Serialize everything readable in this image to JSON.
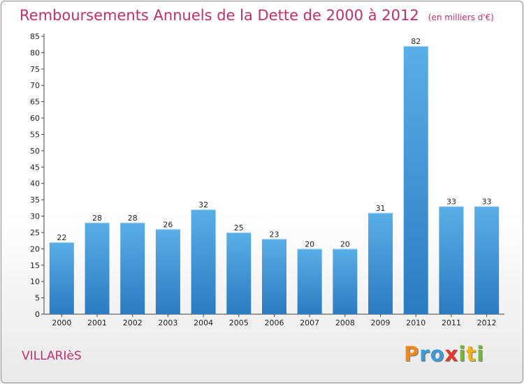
{
  "title": "Remboursements Annuels de la Dette de 2000 à 2012",
  "unit_note": "(en milliers d'€)",
  "commune": "VILLARIèS",
  "logo": {
    "letters": [
      "P",
      "r",
      "o",
      "x",
      "i",
      "t",
      "i"
    ],
    "colors": [
      "#f08a1c",
      "#3a9bd8",
      "#3a9bd8",
      "#e23b2e",
      "#74b833",
      "#f0b21c",
      "#74b833"
    ]
  },
  "colors": {
    "bar_light": "#5aaee6",
    "bar_dark": "#2b7bc2",
    "title": "#c0306a"
  },
  "chart_data": {
    "type": "bar",
    "categories": [
      "2000",
      "2001",
      "2002",
      "2003",
      "2004",
      "2005",
      "2006",
      "2007",
      "2008",
      "2009",
      "2010",
      "2011",
      "2012"
    ],
    "values": [
      22,
      28,
      28,
      26,
      32,
      25,
      23,
      20,
      20,
      31,
      82,
      33,
      33
    ],
    "title": "Remboursements Annuels de la Dette de 2000 à 2012",
    "xlabel": "",
    "ylabel": "",
    "ylim": [
      0,
      85
    ],
    "ytick_step": 5,
    "grid": false,
    "data_labels": true
  }
}
